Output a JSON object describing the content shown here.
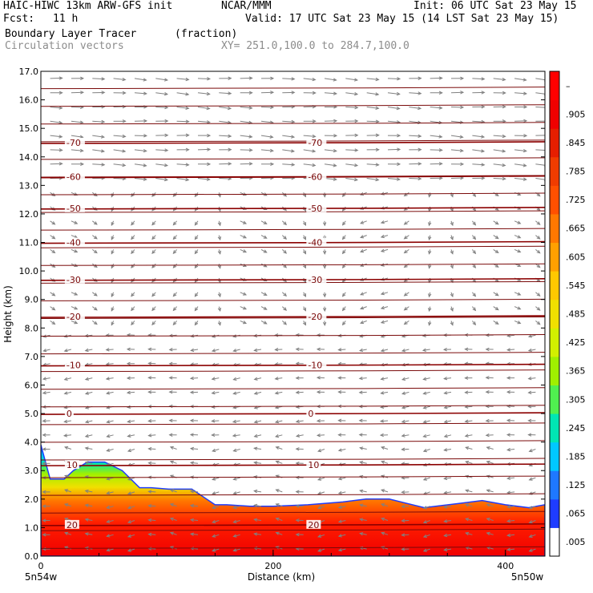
{
  "header": {
    "model": "HAIC-HIWC 13km ARW-GFS init",
    "org": "NCAR/MMM",
    "init": "Init: 06 UTC Sat 23 May 15",
    "fcst_label": "Fcst:",
    "fcst_value": "11 h",
    "valid": "Valid: 17 UTC Sat 23 May 15 (14 LST Sat 23 May 15)",
    "field": "Boundary Layer Tracer",
    "field_units": "(fraction)",
    "overlay": "Circulation vectors",
    "xy_range": "XY= 251.0,100.0 to 284.7,100.0"
  },
  "chart_data": {
    "type": "heatmap",
    "xlabel": "Distance (km)",
    "ylabel": "Height (km)",
    "xlim": [
      0,
      434
    ],
    "ylim": [
      0,
      17
    ],
    "x_ticks": [
      "0",
      "200",
      "400"
    ],
    "x_tick_values": [
      0,
      200,
      400
    ],
    "y_ticks": [
      "0.0",
      "1.0",
      "2.0",
      "3.0",
      "4.0",
      "5.0",
      "6.0",
      "7.0",
      "8.0",
      "9.0",
      "10.0",
      "11.0",
      "12.0",
      "13.0",
      "14.0",
      "15.0",
      "16.0",
      "17.0"
    ],
    "endpoint_left": "5n54w",
    "endpoint_right": "5n50w",
    "colorbar": {
      "labels": [
        ".005",
        ".065",
        ".125",
        ".185",
        ".245",
        ".305",
        ".365",
        ".425",
        ".485",
        ".545",
        ".605",
        ".665",
        ".725",
        ".785",
        ".845",
        ".905",
        "–"
      ],
      "colors": [
        "#ffffff",
        "#1e3cff",
        "#1e78ff",
        "#00c8ff",
        "#00e6b4",
        "#50f050",
        "#a0f000",
        "#d2f000",
        "#f0e000",
        "#ffc800",
        "#ffa000",
        "#ff7800",
        "#ff5000",
        "#f03c00",
        "#e61e00",
        "#f00000",
        "#ff0000"
      ]
    },
    "tracer_top_km": {
      "x": [
        0,
        8,
        20,
        28,
        40,
        55,
        70,
        85,
        95,
        110,
        130,
        150,
        160,
        180,
        200,
        230,
        260,
        280,
        300,
        330,
        360,
        380,
        400,
        420,
        434
      ],
      "y": [
        3.9,
        2.7,
        2.7,
        3.0,
        3.3,
        3.3,
        3.0,
        2.4,
        2.4,
        2.35,
        2.35,
        1.8,
        1.8,
        1.75,
        1.75,
        1.8,
        1.9,
        2.0,
        2.0,
        1.7,
        1.85,
        1.95,
        1.8,
        1.7,
        1.8
      ]
    },
    "temperature_isotherms_c": [
      {
        "label": "-70",
        "height_km": 14.5
      },
      {
        "label": "-60",
        "height_km": 13.3
      },
      {
        "label": "-50",
        "height_km": 12.2
      },
      {
        "label": "-40",
        "height_km": 11.0
      },
      {
        "label": "-30",
        "height_km": 9.7
      },
      {
        "label": "-20",
        "height_km": 8.4
      },
      {
        "label": "-10",
        "height_km": 6.7
      },
      {
        "label": "0",
        "height_km": 5.0
      },
      {
        "label": "10",
        "height_km": 3.2
      },
      {
        "label": "20",
        "height_km": 1.1
      }
    ]
  }
}
